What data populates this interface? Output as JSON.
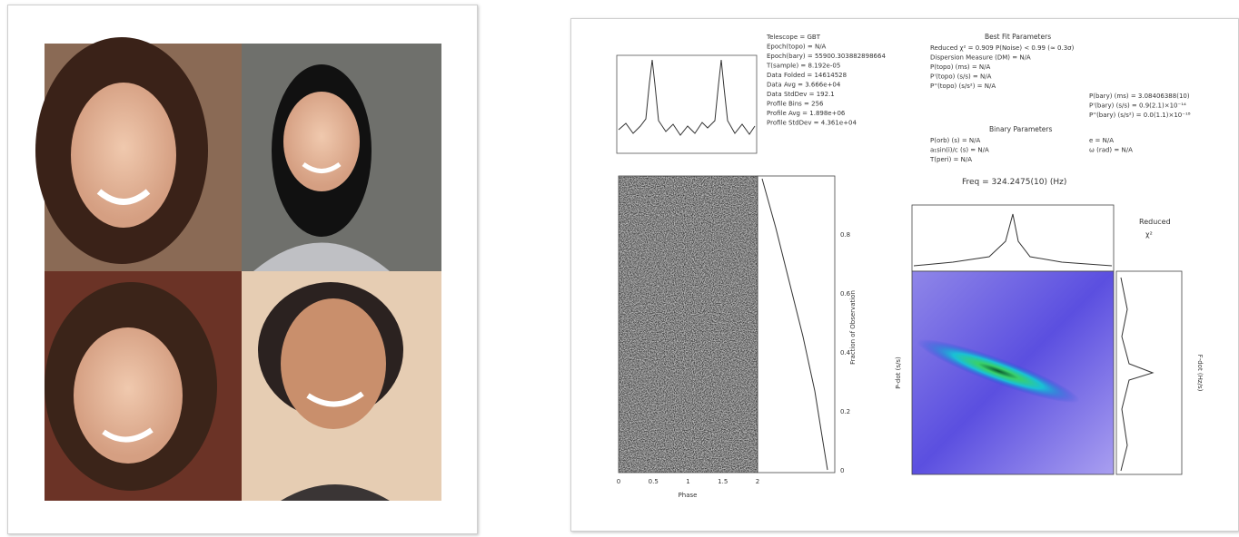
{
  "plot": {
    "info": [
      "Telescope = GBT",
      "Epoch(topo) = N/A",
      "Epoch(bary) = 55900.303882898664",
      "T(sample) = 8.192e-05",
      "Data Folded = 14614528",
      "Data Avg = 3.666e+04",
      "Data StdDev = 192.1",
      "Profile Bins = 256",
      "Profile Avg = 1.898e+06",
      "Profile StdDev = 4.361e+04"
    ],
    "best_fit_title": "Best Fit Parameters",
    "best_fit": [
      "Reduced χ² = 0.909   P(Noise) < 0.99   (≈ 0.3σ)",
      "Dispersion Measure (DM) = N/A",
      "P(topo) (ms) = N/A",
      "P'(topo) (s/s) = N/A",
      "P''(topo) (s/s²) = N/A"
    ],
    "best_fit_right": [
      "P(bary) (ms) = 3.08406388(10)",
      "P'(bary) (s/s) = 0.9(2.1)×10⁻¹⁴",
      "P''(bary) (s/s²) = 0.0(1.1)×10⁻¹⁸"
    ],
    "binary_title": "Binary Parameters",
    "binary": [
      "P(orb) (s) = N/A",
      "a₁sin(i)/c (s) = N/A",
      "T(peri) = N/A"
    ],
    "binary_right": [
      "e = N/A",
      "ω (rad) = N/A"
    ],
    "freq_label": "Freq = 324.2475(10) (Hz)",
    "reduced_chi": [
      "Reduced",
      "χ²"
    ],
    "phase_label": "Phase",
    "fraction_label": "Fraction of Observation",
    "pdot_label": "P-dot (s/s)",
    "fdot_label": "F-dot (Hz/s)",
    "phase_ticks": [
      "0",
      "0.5",
      "1",
      "1.5",
      "2"
    ],
    "fraction_ticks": [
      "0",
      "0.2",
      "0.4",
      "0.6",
      "0.8"
    ]
  }
}
